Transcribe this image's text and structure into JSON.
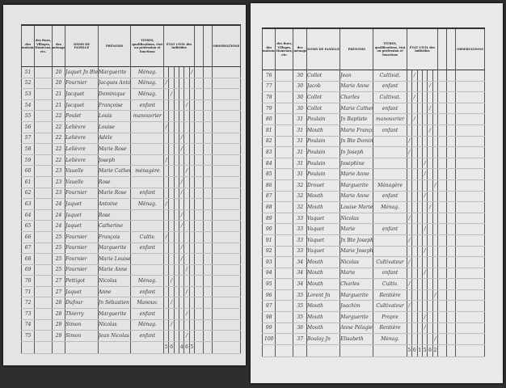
{
  "headers": {
    "numeros": "NUMÉROS D'ORDRE",
    "maisons": "des maisons",
    "villages": "des Rues, Villages, Hameaux, etc.",
    "menages": "des ménages",
    "noms": "NOMS DE FAMILLE",
    "prenoms": "PRÉNOMS",
    "titres": "TITRES, qualifications, état ou profession et fonctions",
    "etat_civil": "ÉTAT CIVIL des individus",
    "observations": "OBSERVATIONS"
  },
  "left_page": {
    "rows": [
      {
        "num": "51",
        "house": "20",
        "nom": "Jaquet Jn Bte",
        "prenom": "Marguerite",
        "titre": "Ménag.",
        "mark": 5
      },
      {
        "num": "52",
        "house": "20",
        "nom": "Fournier",
        "prenom": "Jacques Antoine",
        "titre": "Ménag.",
        "mark": 0
      },
      {
        "num": "53",
        "house": "21",
        "nom": "Jacquet",
        "prenom": "Dominique",
        "titre": "Ménag.",
        "mark": 1
      },
      {
        "num": "54",
        "house": "21",
        "nom": "Jacquet",
        "prenom": "Françoise",
        "titre": "enfant",
        "mark": 4
      },
      {
        "num": "55",
        "house": "22",
        "nom": "Poulet",
        "prenom": "Louis",
        "titre": "manouvrier",
        "mark": -1
      },
      {
        "num": "56",
        "house": "22",
        "nom": "Lelièvre",
        "prenom": "Louise",
        "titre": "",
        "mark": 0
      },
      {
        "num": "57",
        "house": "22",
        "nom": "Lelièvre",
        "prenom": "Adèle",
        "titre": "",
        "mark": 3
      },
      {
        "num": "58",
        "house": "22",
        "nom": "Lelièvre",
        "prenom": "Marie Rose",
        "titre": "",
        "mark": 3
      },
      {
        "num": "59",
        "house": "22",
        "nom": "Lelièvre",
        "prenom": "Joseph",
        "titre": "",
        "mark": 0
      },
      {
        "num": "60",
        "house": "23",
        "nom": "Vauelle",
        "prenom": "Marie Catherine",
        "titre": "ménagère",
        "mark": 4
      },
      {
        "num": "61",
        "house": "23",
        "nom": "Vauelle",
        "prenom": "Rose",
        "titre": "",
        "mark": 3
      },
      {
        "num": "62",
        "house": "23",
        "nom": "Fournier",
        "prenom": "Marie Rose",
        "titre": "enfant",
        "mark": 3
      },
      {
        "num": "63",
        "house": "24",
        "nom": "Jaquet",
        "prenom": "Antoine",
        "titre": "Ménag.",
        "mark": 0
      },
      {
        "num": "64",
        "house": "24",
        "nom": "Jaquet",
        "prenom": "Rose",
        "titre": "",
        "mark": 3
      },
      {
        "num": "65",
        "house": "24",
        "nom": "Jaquet",
        "prenom": "Catherine",
        "titre": "",
        "mark": 3
      },
      {
        "num": "66",
        "house": "25",
        "nom": "Fournier",
        "prenom": "François",
        "titre": "Cultiv.",
        "mark": 0
      },
      {
        "num": "67",
        "house": "25",
        "nom": "Fournier",
        "prenom": "Marguerite",
        "titre": "enfant",
        "mark": 3
      },
      {
        "num": "68",
        "house": "25",
        "nom": "Fournier",
        "prenom": "Marie Louise",
        "titre": "",
        "mark": 3
      },
      {
        "num": "69",
        "house": "25",
        "nom": "Fournier",
        "prenom": "Marie Anne",
        "titre": "",
        "mark": 4
      },
      {
        "num": "70",
        "house": "27",
        "nom": "Pettigot",
        "prenom": "Nicolas",
        "titre": "Ménag.",
        "mark": 1
      },
      {
        "num": "71",
        "house": "27",
        "nom": "Jaquet",
        "prenom": "Anne",
        "titre": "enfant",
        "mark": 4
      },
      {
        "num": "72",
        "house": "28",
        "nom": "Dufour",
        "prenom": "Jn Sébastien",
        "titre": "Manouv.",
        "mark": 1
      },
      {
        "num": "73",
        "house": "28",
        "nom": "Thierry",
        "prenom": "Marguerite",
        "titre": "enfant",
        "mark": 4
      },
      {
        "num": "74",
        "house": "29",
        "nom": "Simon",
        "prenom": "Nicolas",
        "titre": "Ménag.",
        "mark": 1
      },
      {
        "num": "75",
        "house": "29",
        "nom": "Simon",
        "prenom": "Jean Nicolas",
        "titre": "enfant",
        "mark": 4
      }
    ],
    "totals": [
      "5",
      "6",
      "",
      "4",
      "6",
      "5"
    ]
  },
  "right_page": {
    "rows": [
      {
        "num": "76",
        "house": "30",
        "nom": "Collot",
        "prenom": "Jean",
        "titre": "Cultivat.",
        "mark": 1
      },
      {
        "num": "77",
        "house": "30",
        "nom": "Jacob",
        "prenom": "Marie Anne",
        "titre": "enfant",
        "mark": 4
      },
      {
        "num": "78",
        "house": "30",
        "nom": "Collot",
        "prenom": "Charles",
        "titre": "Cultivat.",
        "mark": 1
      },
      {
        "num": "79",
        "house": "30",
        "nom": "Collot",
        "prenom": "Marie Catherine",
        "titre": "enfant",
        "mark": 4
      },
      {
        "num": "80",
        "house": "31",
        "nom": "Poulain",
        "prenom": "Jn Baptiste",
        "titre": "manouvrier",
        "mark": 1
      },
      {
        "num": "81",
        "house": "31",
        "nom": "Mouth",
        "prenom": "Marie Françoise",
        "titre": "enfant",
        "mark": 4
      },
      {
        "num": "82",
        "house": "31",
        "nom": "Poulain",
        "prenom": "Jn Bte Dominique",
        "titre": "",
        "mark": 0
      },
      {
        "num": "83",
        "house": "31",
        "nom": "Poulain",
        "prenom": "Jn Joseph",
        "titre": "",
        "mark": 0
      },
      {
        "num": "84",
        "house": "31",
        "nom": "Poulain",
        "prenom": "Joséphine",
        "titre": "",
        "mark": 3
      },
      {
        "num": "85",
        "house": "31",
        "nom": "Poulain",
        "prenom": "Marie Anne",
        "titre": "",
        "mark": 3
      },
      {
        "num": "86",
        "house": "32",
        "nom": "Drouet",
        "prenom": "Marguerite",
        "titre": "Ménagère",
        "mark": 5
      },
      {
        "num": "87",
        "house": "32",
        "nom": "Mouth",
        "prenom": "Marie Anne",
        "titre": "enfant",
        "mark": 3
      },
      {
        "num": "88",
        "house": "32",
        "nom": "Mouth",
        "prenom": "Louise Marie",
        "titre": "Ménag.",
        "mark": 4
      },
      {
        "num": "89",
        "house": "33",
        "nom": "Vaquet",
        "prenom": "Nicolas",
        "titre": "",
        "mark": 0
      },
      {
        "num": "90",
        "house": "33",
        "nom": "Vaquet",
        "prenom": "Marie",
        "titre": "enfant",
        "mark": 3
      },
      {
        "num": "91",
        "house": "33",
        "nom": "Vaquet",
        "prenom": "Jn Bte Joseph",
        "titre": "",
        "mark": 0
      },
      {
        "num": "92",
        "house": "33",
        "nom": "Vaquet",
        "prenom": "Marie Joseph",
        "titre": "",
        "mark": 3
      },
      {
        "num": "93",
        "house": "34",
        "nom": "Mouth",
        "prenom": "Nicolas",
        "titre": "Cultivateur",
        "mark": 0
      },
      {
        "num": "94",
        "house": "34",
        "nom": "Mouth",
        "prenom": "Marie",
        "titre": "enfant",
        "mark": 3
      },
      {
        "num": "95",
        "house": "34",
        "nom": "Mouth",
        "prenom": "Charles",
        "titre": "Cultiv.",
        "mark": 0
      },
      {
        "num": "96",
        "house": "35",
        "nom": "Lorent Jn",
        "prenom": "Marguerite",
        "titre": "Rentière",
        "mark": 5
      },
      {
        "num": "97",
        "house": "35",
        "nom": "Mouth",
        "prenom": "Joachim",
        "titre": "Cultivateur",
        "mark": 0
      },
      {
        "num": "98",
        "house": "35",
        "nom": "Mouth",
        "prenom": "Marguerite",
        "titre": "Propre",
        "mark": 3
      },
      {
        "num": "99",
        "house": "36",
        "nom": "Mouth",
        "prenom": "Anne Pélagie",
        "titre": "Rentière",
        "mark": 3
      },
      {
        "num": "100",
        "house": "37",
        "nom": "Boulay Jn",
        "prenom": "Elisabeth",
        "titre": "Ménag.",
        "mark": 5
      }
    ],
    "totals": [
      "5",
      "6",
      "1",
      "5",
      "6",
      "2"
    ]
  },
  "colors": {
    "paper": "#e4e4e2",
    "ink": "#333333",
    "background": "#2e2e2e"
  }
}
